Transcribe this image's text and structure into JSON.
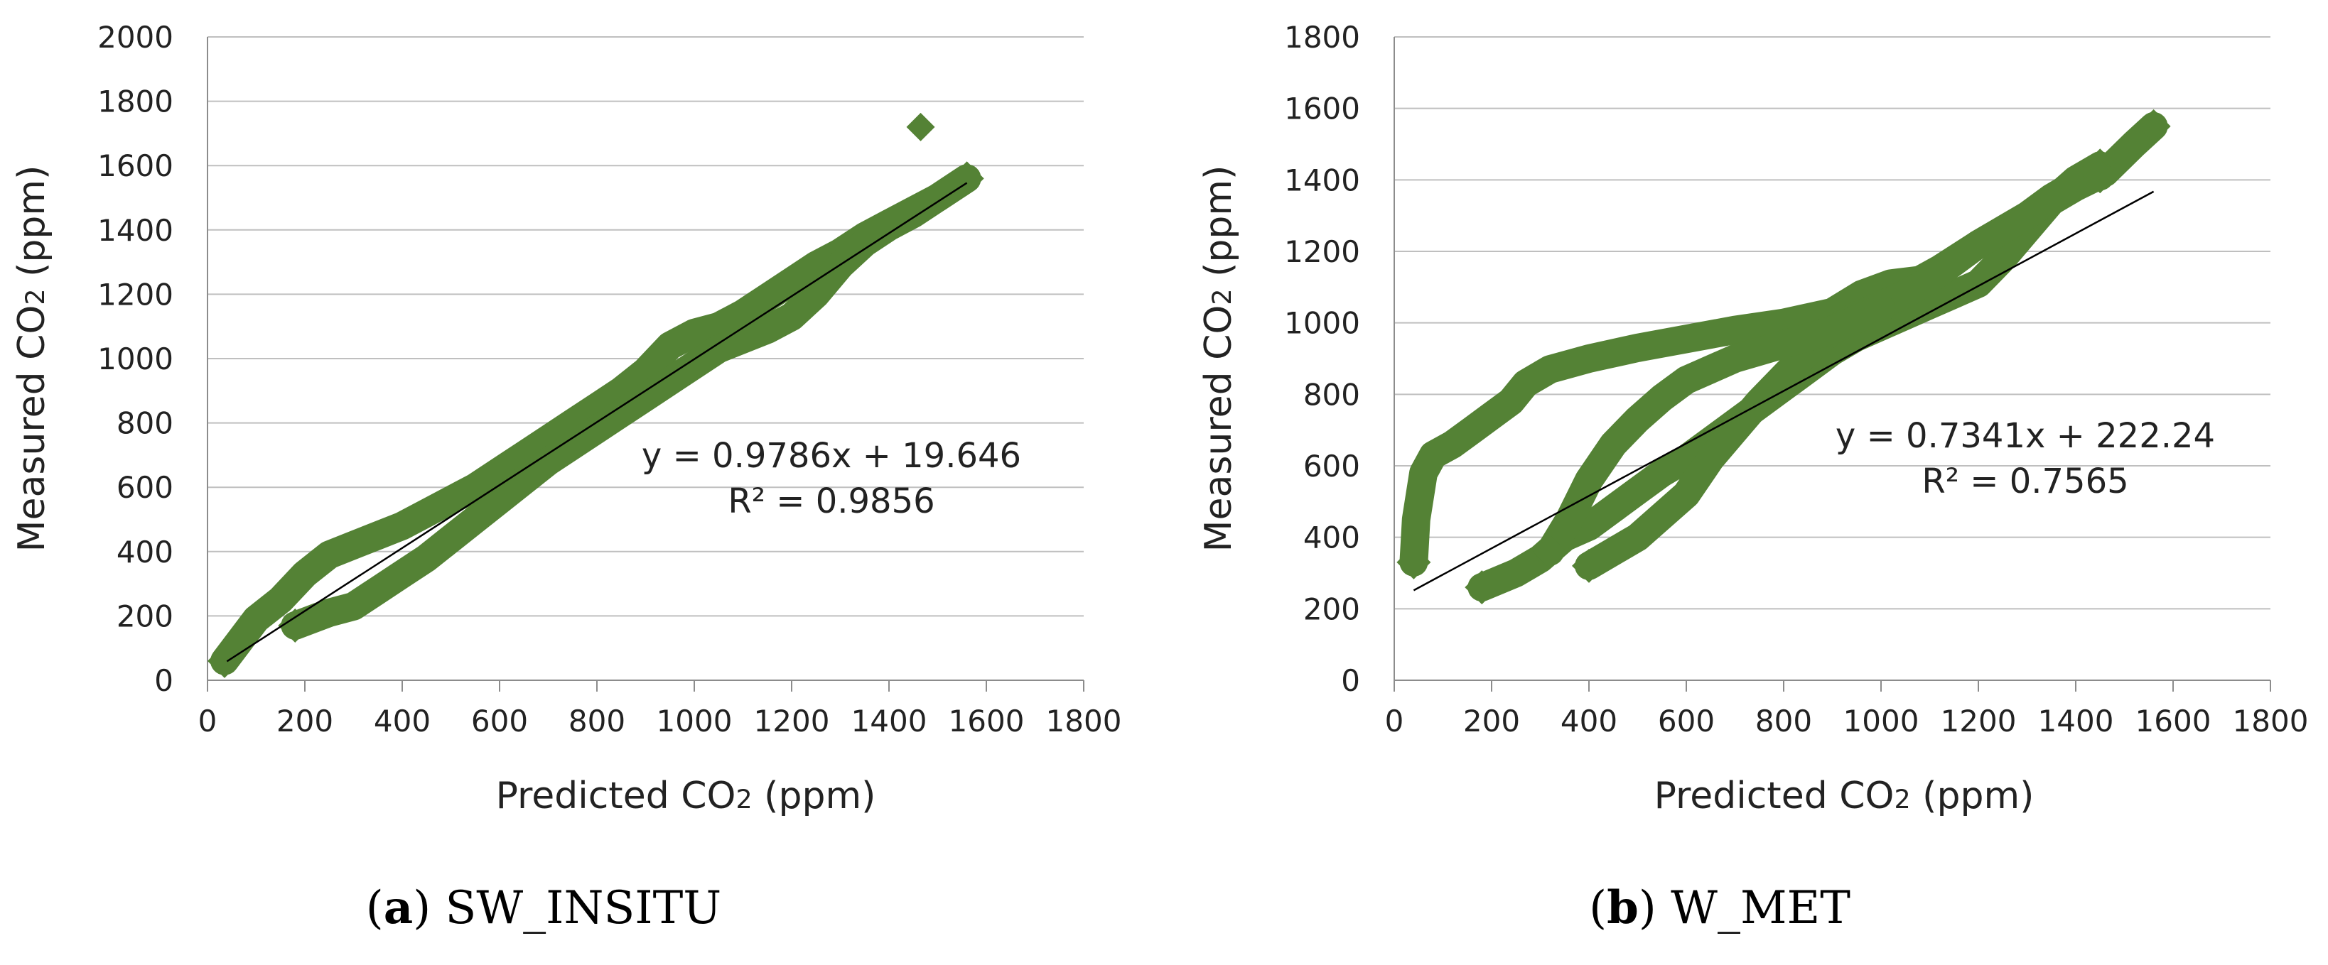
{
  "chart_data": [
    {
      "type": "scatter",
      "xlabel": {
        "pre": "Predicted CO",
        "sub": "2",
        "post": " (ppm)"
      },
      "ylabel": {
        "pre": "Measured CO",
        "sub": "2",
        "post": " (ppm)"
      },
      "xlim": [
        0,
        1800
      ],
      "ylim": [
        0,
        2000
      ],
      "xticks": [
        "0",
        "200",
        "400",
        "600",
        "800",
        "1000",
        "1200",
        "1400",
        "1600",
        "1800"
      ],
      "yticks": [
        "0",
        "200",
        "400",
        "600",
        "800",
        "1000",
        "1200",
        "1400",
        "1600",
        "1800",
        "2000"
      ],
      "grid": true,
      "marker_color": "#548235",
      "trendline": {
        "equation": "y = 0.9786x + 19.646",
        "r2": "R² = 0.9856",
        "slope": 0.9786,
        "intercept": 19.646,
        "x_range": [
          40,
          1560
        ]
      },
      "caption": {
        "letter": "a",
        "text": "SW_INSITU"
      },
      "series": [
        {
          "paths": [
            [
              [
                35,
                60
              ],
              [
                60,
                110
              ],
              [
                100,
                190
              ],
              [
                150,
                250
              ],
              [
                200,
                330
              ],
              [
                250,
                390
              ],
              [
                300,
                420
              ],
              [
                350,
                450
              ],
              [
                400,
                480
              ],
              [
                450,
                520
              ],
              [
                500,
                560
              ],
              [
                550,
                600
              ],
              [
                600,
                650
              ],
              [
                650,
                700
              ],
              [
                700,
                750
              ],
              [
                750,
                800
              ],
              [
                800,
                850
              ],
              [
                850,
                900
              ],
              [
                900,
                960
              ],
              [
                950,
                1040
              ],
              [
                1000,
                1080
              ],
              [
                1050,
                1100
              ],
              [
                1100,
                1140
              ],
              [
                1150,
                1190
              ],
              [
                1200,
                1240
              ],
              [
                1250,
                1290
              ],
              [
                1300,
                1330
              ],
              [
                1350,
                1380
              ],
              [
                1400,
                1420
              ],
              [
                1450,
                1460
              ],
              [
                1500,
                1500
              ],
              [
                1560,
                1560
              ]
            ],
            [
              [
                180,
                170
              ],
              [
                250,
                210
              ],
              [
                300,
                230
              ],
              [
                350,
                280
              ],
              [
                400,
                330
              ],
              [
                450,
                380
              ],
              [
                500,
                440
              ],
              [
                550,
                500
              ],
              [
                600,
                560
              ],
              [
                650,
                620
              ],
              [
                700,
                680
              ],
              [
                750,
                730
              ],
              [
                800,
                780
              ],
              [
                850,
                830
              ],
              [
                900,
                880
              ],
              [
                950,
                930
              ],
              [
                1000,
                980
              ],
              [
                1050,
                1030
              ],
              [
                1100,
                1060
              ],
              [
                1150,
                1090
              ],
              [
                1200,
                1130
              ],
              [
                1250,
                1200
              ],
              [
                1300,
                1290
              ],
              [
                1350,
                1360
              ],
              [
                1400,
                1410
              ],
              [
                1450,
                1450
              ],
              [
                1500,
                1500
              ],
              [
                1560,
                1560
              ]
            ]
          ],
          "outliers": [
            [
              1465,
              1720
            ]
          ]
        }
      ]
    },
    {
      "type": "scatter",
      "xlabel": {
        "pre": "Predicted CO",
        "sub": "2",
        "post": " (ppm)"
      },
      "ylabel": {
        "pre": "Measured CO",
        "sub": "2",
        "post": " (ppm)"
      },
      "xlim": [
        0,
        1800
      ],
      "ylim": [
        0,
        1800
      ],
      "xticks": [
        "0",
        "200",
        "400",
        "600",
        "800",
        "1000",
        "1200",
        "1400",
        "1600",
        "1800"
      ],
      "yticks": [
        "0",
        "200",
        "400",
        "600",
        "800",
        "1000",
        "1200",
        "1400",
        "1600",
        "1800"
      ],
      "grid": true,
      "marker_color": "#548235",
      "trendline": {
        "equation": "y = 0.7341x + 222.24",
        "r2": "R² = 0.7565",
        "slope": 0.7341,
        "intercept": 222.24,
        "x_range": [
          40,
          1560
        ]
      },
      "caption": {
        "letter": "b",
        "text": "W_MET"
      },
      "series": [
        {
          "paths": [
            [
              [
                40,
                330
              ],
              [
                45,
                450
              ],
              [
                60,
                580
              ],
              [
                80,
                630
              ],
              [
                120,
                660
              ],
              [
                160,
                700
              ],
              [
                200,
                740
              ],
              [
                240,
                780
              ],
              [
                270,
                830
              ],
              [
                320,
                870
              ],
              [
                400,
                900
              ],
              [
                500,
                930
              ],
              [
                600,
                955
              ],
              [
                700,
                980
              ],
              [
                800,
                1000
              ],
              [
                900,
                1030
              ],
              [
                960,
                1080
              ],
              [
                1020,
                1110
              ],
              [
                1080,
                1120
              ],
              [
                1120,
                1150
              ],
              [
                1200,
                1220
              ],
              [
                1300,
                1300
              ],
              [
                1400,
                1380
              ],
              [
                1460,
                1420
              ],
              [
                1520,
                1500
              ],
              [
                1560,
                1550
              ]
            ],
            [
              [
                180,
                260
              ],
              [
                250,
                300
              ],
              [
                300,
                340
              ],
              [
                350,
                400
              ],
              [
                400,
                430
              ],
              [
                450,
                480
              ],
              [
                500,
                530
              ],
              [
                550,
                580
              ],
              [
                600,
                620
              ],
              [
                650,
                670
              ],
              [
                700,
                720
              ],
              [
                750,
                770
              ],
              [
                800,
                820
              ],
              [
                850,
                870
              ],
              [
                900,
                920
              ],
              [
                950,
                960
              ],
              [
                1000,
                990
              ],
              [
                1050,
                1020
              ],
              [
                1100,
                1050
              ],
              [
                1150,
                1080
              ],
              [
                1200,
                1110
              ],
              [
                1250,
                1180
              ],
              [
                1300,
                1260
              ],
              [
                1350,
                1340
              ],
              [
                1400,
                1400
              ],
              [
                1450,
                1440
              ]
            ],
            [
              [
                400,
                320
              ],
              [
                500,
                400
              ],
              [
                600,
                520
              ],
              [
                650,
                620
              ],
              [
                700,
                700
              ],
              [
                750,
                780
              ],
              [
                800,
                850
              ],
              [
                850,
                920
              ],
              [
                900,
                980
              ],
              [
                950,
                1020
              ],
              [
                1000,
                1050
              ],
              [
                1050,
                1080
              ],
              [
                1100,
                1120
              ],
              [
                1150,
                1170
              ],
              [
                1200,
                1220
              ],
              [
                1250,
                1260
              ],
              [
                1300,
                1300
              ],
              [
                1350,
                1350
              ],
              [
                1400,
                1390
              ],
              [
                1450,
                1410
              ]
            ],
            [
              [
                320,
                360
              ],
              [
                360,
                450
              ],
              [
                400,
                560
              ],
              [
                450,
                660
              ],
              [
                500,
                730
              ],
              [
                550,
                790
              ],
              [
                600,
                840
              ],
              [
                650,
                870
              ],
              [
                700,
                900
              ],
              [
                750,
                920
              ],
              [
                800,
                940
              ],
              [
                850,
                960
              ],
              [
                900,
                980
              ],
              [
                950,
                1010
              ],
              [
                1000,
                1040
              ]
            ]
          ],
          "outliers": []
        }
      ]
    }
  ]
}
